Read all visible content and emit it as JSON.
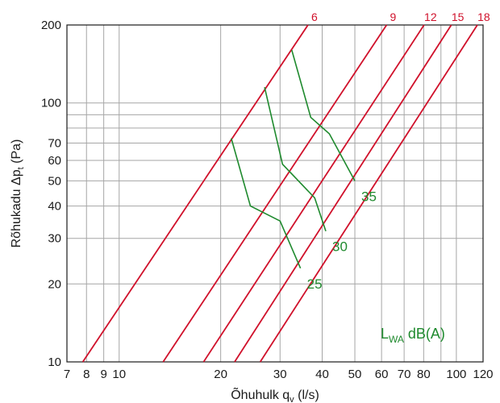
{
  "chart_data": {
    "type": "line",
    "x_scale": "log",
    "y_scale": "log",
    "xlim": [
      7,
      120
    ],
    "ylim": [
      10,
      200
    ],
    "xlabel": "Õhuhulk",
    "xlabel_symbol": "q",
    "xlabel_sub": "v",
    "xlabel_unit": "(l/s)",
    "ylabel": "Rõhukadu",
    "ylabel_symbol": "Δp",
    "ylabel_sub": "t",
    "ylabel_unit": "(Pa)",
    "x_ticks": [
      7,
      8,
      9,
      10,
      20,
      30,
      40,
      50,
      60,
      70,
      80,
      100,
      120
    ],
    "x_tick_labels": [
      "7",
      "8",
      "9",
      "10",
      "20",
      "30",
      "40",
      "50",
      "60",
      "70",
      "80",
      "100",
      "120"
    ],
    "y_ticks": [
      10,
      20,
      30,
      40,
      50,
      60,
      70,
      100,
      200
    ],
    "y_tick_labels": [
      "10",
      "20",
      "30",
      "40",
      "50",
      "60",
      "70",
      "100",
      "200"
    ],
    "x_grid": [
      7,
      8,
      9,
      10,
      20,
      30,
      40,
      50,
      60,
      70,
      80,
      90,
      100,
      120
    ],
    "y_grid": [
      10,
      20,
      30,
      40,
      50,
      60,
      70,
      80,
      90,
      100,
      200
    ],
    "grid": true,
    "colors": {
      "red_series": "#d0112b",
      "green_series": "#1f8a2e",
      "grid": "#a6a6a6"
    },
    "red_series": [
      {
        "name": "6",
        "points": [
          [
            7.8,
            10
          ],
          [
            36.3,
            200
          ]
        ]
      },
      {
        "name": "9",
        "points": [
          [
            13.5,
            10
          ],
          [
            62.1,
            200
          ]
        ]
      },
      {
        "name": "12",
        "points": [
          [
            17.8,
            10
          ],
          [
            80.2,
            200
          ]
        ]
      },
      {
        "name": "15",
        "points": [
          [
            22.0,
            10
          ],
          [
            96.6,
            200
          ]
        ]
      },
      {
        "name": "18",
        "points": [
          [
            26.2,
            10
          ],
          [
            115.4,
            200
          ]
        ]
      }
    ],
    "green_series": [
      {
        "name": "35",
        "points": [
          [
            32.5,
            160
          ],
          [
            37.0,
            88
          ],
          [
            42.0,
            76
          ],
          [
            50.0,
            50
          ]
        ]
      },
      {
        "name": "30",
        "points": [
          [
            27.0,
            115
          ],
          [
            30.5,
            58
          ],
          [
            38.0,
            43
          ],
          [
            41.0,
            32
          ]
        ]
      },
      {
        "name": "25",
        "points": [
          [
            21.5,
            73
          ],
          [
            24.5,
            40
          ],
          [
            30.0,
            35
          ],
          [
            34.5,
            23
          ]
        ]
      }
    ],
    "annotations": [
      {
        "text": "L",
        "sub": "WA",
        "suffix": " dB(A)"
      }
    ]
  }
}
